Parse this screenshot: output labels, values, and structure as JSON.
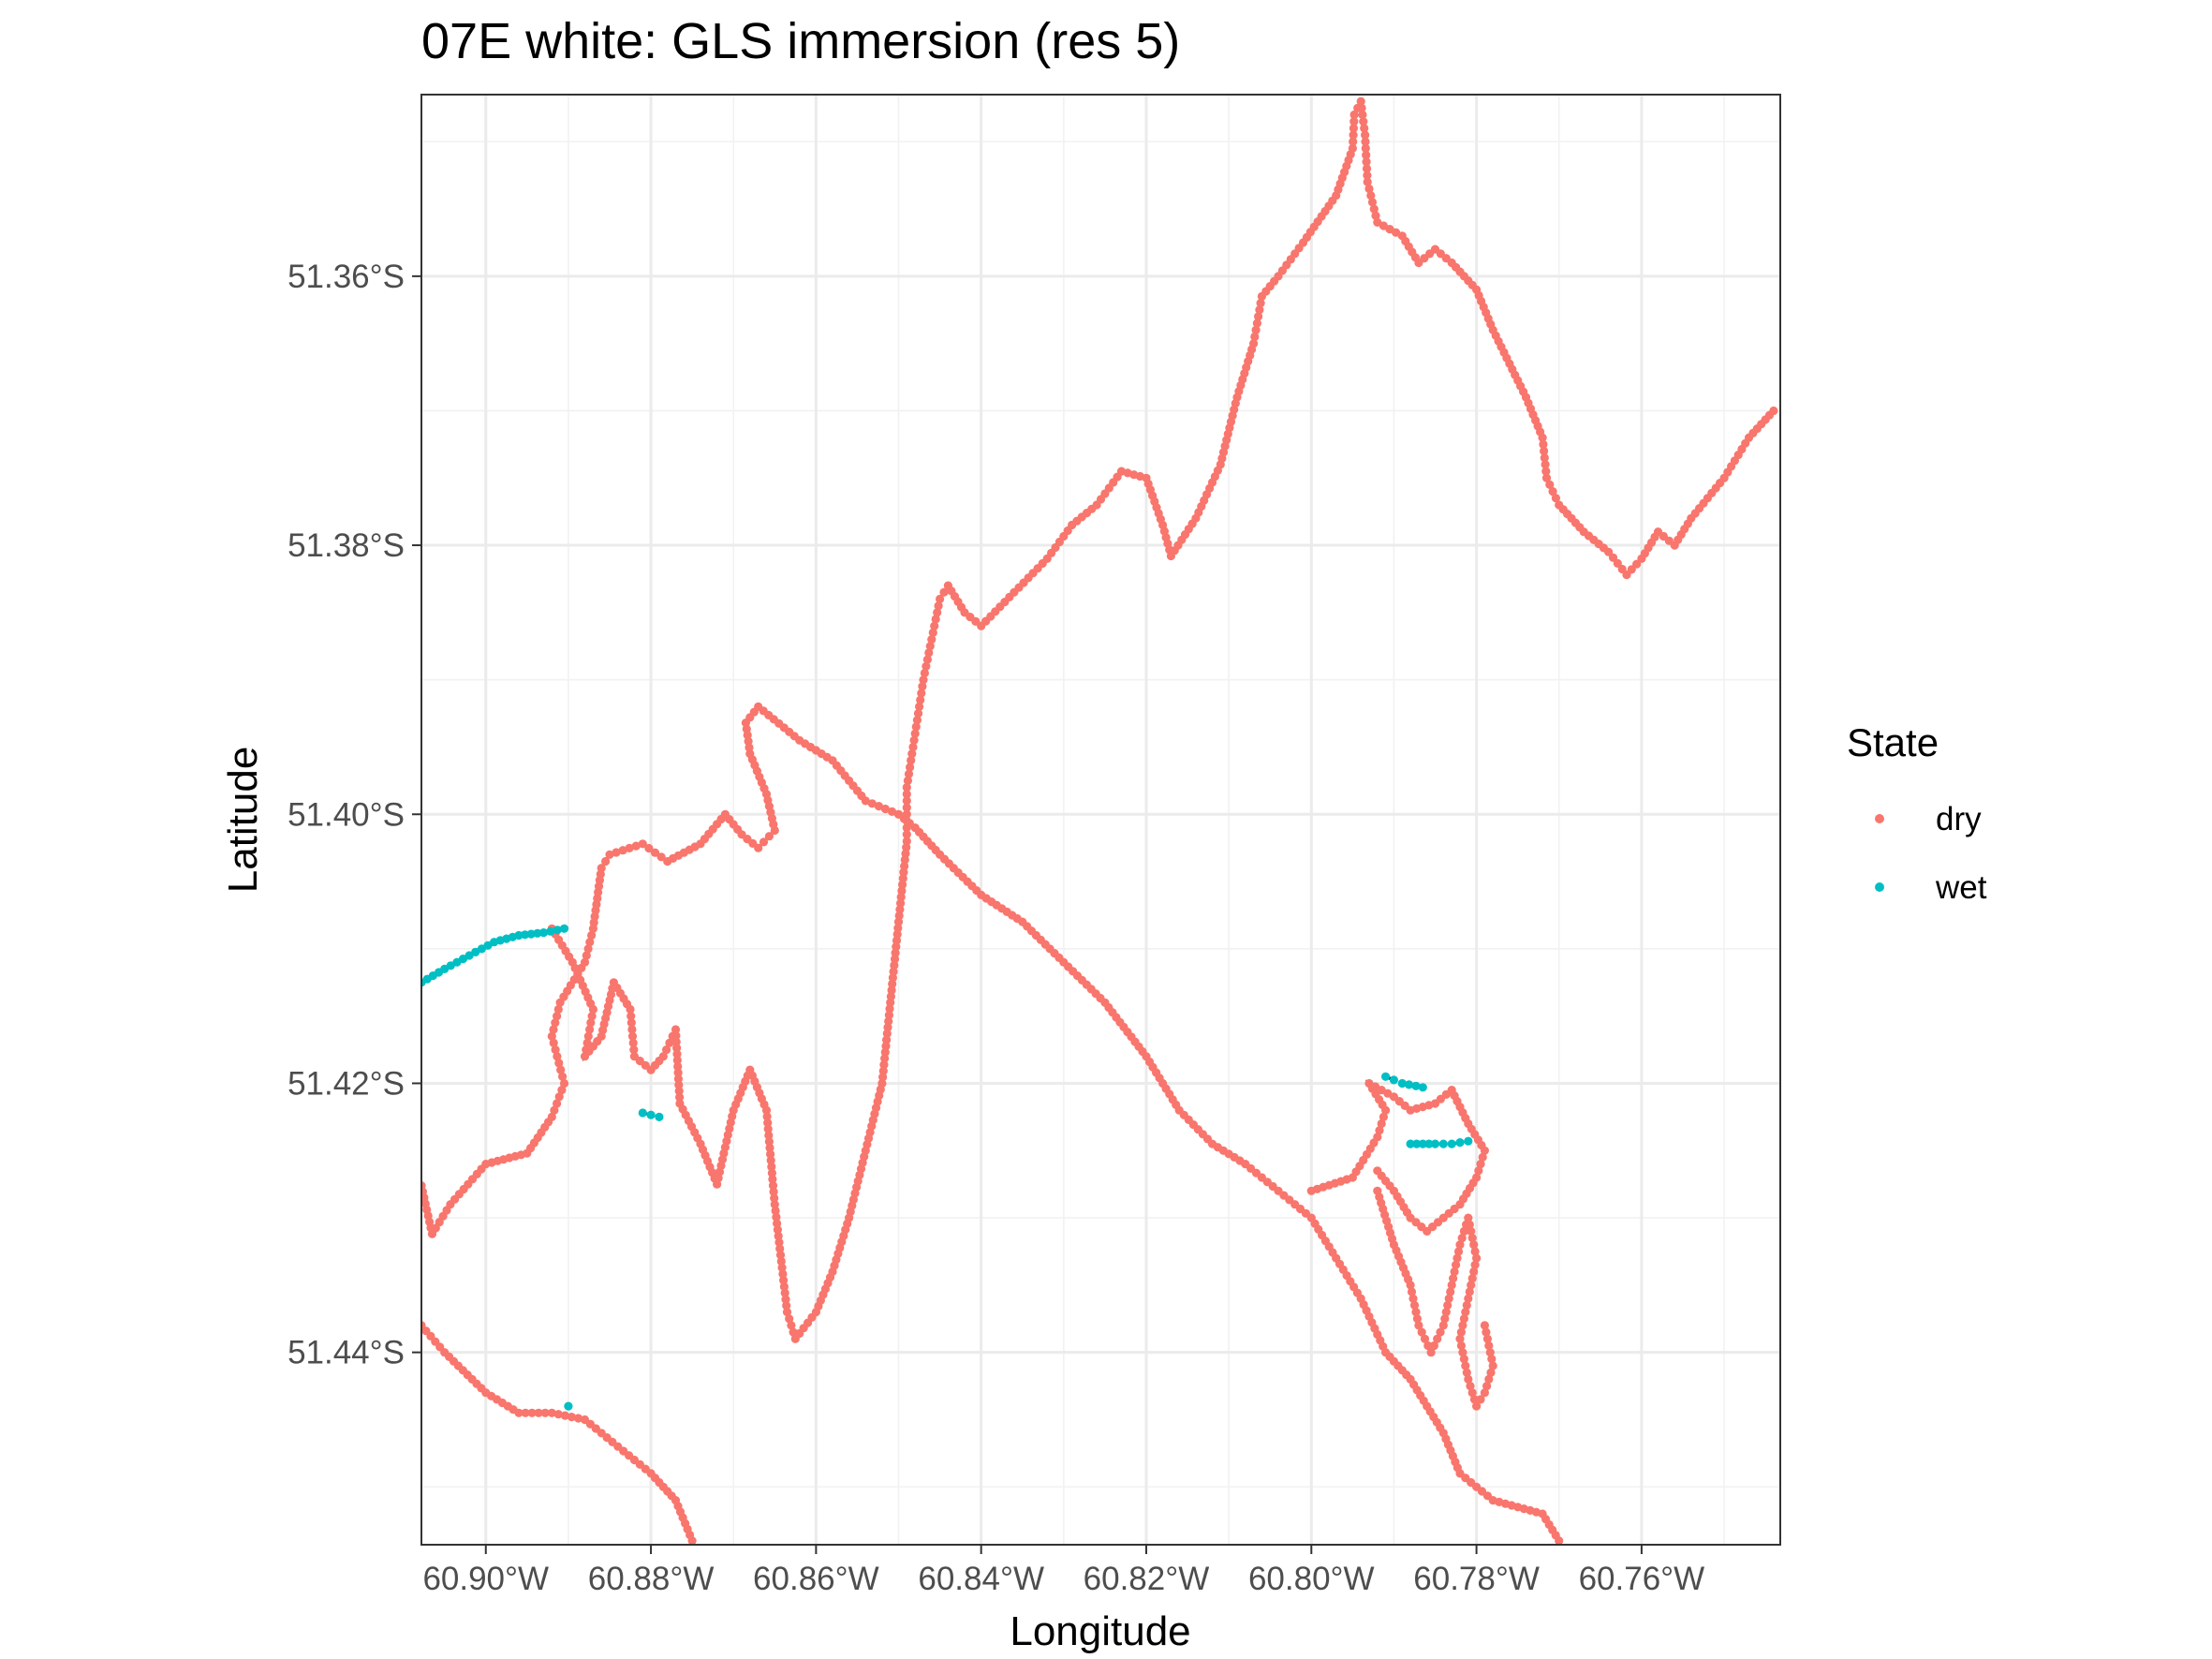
{
  "chart_data": {
    "type": "scatter",
    "title": "07E white: GLS immersion (res 5)",
    "xlabel": "Longitude",
    "ylabel": "Latitude",
    "xlim": [
      -60.9078,
      -60.7432
    ],
    "ylim": [
      -51.4543,
      -51.3465
    ],
    "x_ticks": [
      -60.9,
      -60.88,
      -60.86,
      -60.84,
      -60.82,
      -60.8,
      -60.78,
      -60.76
    ],
    "x_tick_labels": [
      "60.90°W",
      "60.88°W",
      "60.86°W",
      "60.84°W",
      "60.82°W",
      "60.80°W",
      "60.78°W",
      "60.76°W"
    ],
    "y_ticks": [
      -51.36,
      -51.38,
      -51.4,
      -51.42,
      -51.44
    ],
    "y_tick_labels": [
      "51.36°S",
      "51.38°S",
      "51.40°S",
      "51.42°S",
      "51.44°S"
    ],
    "grid": true,
    "legend": {
      "title": "State",
      "position": "right"
    },
    "connecting_line": {
      "color": "#000000",
      "style": "dashed"
    },
    "series": [
      {
        "name": "dry",
        "color": "#F8766D",
        "segments": [
          [
            [
              -60.9078,
              -51.4276
            ],
            [
              -60.9065,
              -51.4312
            ],
            [
              -60.9043,
              -51.429
            ],
            [
              -60.9,
              -51.426
            ],
            [
              -60.895,
              -51.4252
            ],
            [
              -60.892,
              -51.4225
            ],
            [
              -60.8905,
              -51.42
            ],
            [
              -60.892,
              -51.4165
            ],
            [
              -60.891,
              -51.414
            ],
            [
              -60.888,
              -51.411
            ],
            [
              -60.887,
              -51.4085
            ],
            [
              -60.886,
              -51.404
            ],
            [
              -60.885,
              -51.403
            ],
            [
              -60.881,
              -51.4022
            ],
            [
              -60.878,
              -51.4035
            ],
            [
              -60.874,
              -51.4022
            ],
            [
              -60.871,
              -51.4
            ],
            [
              -60.869,
              -51.4015
            ],
            [
              -60.867,
              -51.4025
            ],
            [
              -60.865,
              -51.4012
            ],
            [
              -60.866,
              -51.3985
            ],
            [
              -60.868,
              -51.3955
            ],
            [
              -60.8685,
              -51.3932
            ],
            [
              -60.867,
              -51.392
            ],
            [
              -60.862,
              -51.3945
            ],
            [
              -60.858,
              -51.396
            ],
            [
              -60.854,
              -51.399
            ],
            [
              -60.85,
              -51.4
            ]
          ],
          [
            [
              -60.892,
              -51.4085
            ],
            [
              -60.8895,
              -51.411
            ],
            [
              -60.887,
              -51.4145
            ],
            [
              -60.888,
              -51.418
            ],
            [
              -60.886,
              -51.4165
            ],
            [
              -60.8845,
              -51.4125
            ],
            [
              -60.8825,
              -51.4145
            ],
            [
              -60.882,
              -51.418
            ],
            [
              -60.88,
              -51.419
            ],
            [
              -60.8785,
              -51.418
            ],
            [
              -60.877,
              -51.416
            ],
            [
              -60.8765,
              -51.4215
            ],
            [
              -60.874,
              -51.4245
            ],
            [
              -60.872,
              -51.4275
            ],
            [
              -60.87,
              -51.422
            ],
            [
              -60.868,
              -51.419
            ],
            [
              -60.866,
              -51.422
            ],
            [
              -60.865,
              -51.429
            ],
            [
              -60.8635,
              -51.437
            ],
            [
              -60.8625,
              -51.439
            ],
            [
              -60.86,
              -51.437
            ],
            [
              -60.858,
              -51.434
            ],
            [
              -60.856,
              -51.43
            ],
            [
              -60.854,
              -51.425
            ],
            [
              -60.852,
              -51.42
            ],
            [
              -60.851,
              -51.414
            ],
            [
              -60.85,
              -51.408
            ],
            [
              -60.849,
              -51.402
            ],
            [
              -60.849,
              -51.398
            ],
            [
              -60.848,
              -51.394
            ],
            [
              -60.847,
              -51.39
            ],
            [
              -60.846,
              -51.387
            ],
            [
              -60.845,
              -51.384
            ],
            [
              -60.844,
              -51.383
            ],
            [
              -60.842,
              -51.385
            ],
            [
              -60.84,
              -51.386
            ],
            [
              -60.836,
              -51.3835
            ],
            [
              -60.832,
              -51.381
            ],
            [
              -60.829,
              -51.3785
            ],
            [
              -60.826,
              -51.377
            ],
            [
              -60.823,
              -51.3745
            ],
            [
              -60.82,
              -51.375
            ],
            [
              -60.818,
              -51.3785
            ],
            [
              -60.817,
              -51.3808
            ],
            [
              -60.814,
              -51.378
            ],
            [
              -60.811,
              -51.374
            ],
            [
              -60.809,
              -51.369
            ],
            [
              -60.807,
              -51.365
            ],
            [
              -60.806,
              -51.3615
            ],
            [
              -60.804,
              -51.36
            ],
            [
              -60.801,
              -51.3575
            ],
            [
              -60.797,
              -51.354
            ],
            [
              -60.795,
              -51.3505
            ],
            [
              -60.7948,
              -51.348
            ],
            [
              -60.794,
              -51.347
            ],
            [
              -60.7935,
              -51.3495
            ],
            [
              -60.7932,
              -51.353
            ],
            [
              -60.792,
              -51.356
            ],
            [
              -60.789,
              -51.357
            ],
            [
              -60.787,
              -51.359
            ],
            [
              -60.785,
              -51.358
            ],
            [
              -60.783,
              -51.359
            ],
            [
              -60.78,
              -51.361
            ],
            [
              -60.778,
              -51.364
            ],
            [
              -60.776,
              -51.3665
            ],
            [
              -60.774,
              -51.369
            ],
            [
              -60.772,
              -51.372
            ],
            [
              -60.7715,
              -51.375
            ],
            [
              -60.77,
              -51.377
            ],
            [
              -60.767,
              -51.379
            ],
            [
              -60.764,
              -51.3805
            ],
            [
              -60.7618,
              -51.3822
            ],
            [
              -60.76,
              -51.381
            ],
            [
              -60.758,
              -51.379
            ],
            [
              -60.756,
              -51.38
            ],
            [
              -60.754,
              -51.378
            ],
            [
              -60.75,
              -51.375
            ],
            [
              -60.747,
              -51.372
            ],
            [
              -60.744,
              -51.37
            ]
          ],
          [
            [
              -60.85,
              -51.4
            ],
            [
              -60.848,
              -51.401
            ],
            [
              -60.845,
              -51.403
            ],
            [
              -60.84,
              -51.406
            ],
            [
              -60.835,
              -51.408
            ],
            [
              -60.83,
              -51.411
            ],
            [
              -60.825,
              -51.414
            ],
            [
              -60.82,
              -51.418
            ],
            [
              -60.816,
              -51.422
            ],
            [
              -60.812,
              -51.4245
            ],
            [
              -60.808,
              -51.426
            ],
            [
              -60.804,
              -51.428
            ],
            [
              -60.8,
              -51.43
            ],
            [
              -60.797,
              -51.433
            ],
            [
              -60.794,
              -51.436
            ],
            [
              -60.791,
              -51.44
            ],
            [
              -60.788,
              -51.442
            ],
            [
              -60.786,
              -51.444
            ],
            [
              -60.784,
              -51.446
            ],
            [
              -60.782,
              -51.449
            ],
            [
              -60.778,
              -51.451
            ],
            [
              -60.772,
              -51.452
            ],
            [
              -60.77,
              -51.454
            ]
          ],
          [
            [
              -60.8,
              -51.428
            ],
            [
              -60.795,
              -51.427
            ],
            [
              -60.792,
              -51.424
            ],
            [
              -60.791,
              -51.422
            ],
            [
              -60.793,
              -51.42
            ],
            [
              -60.79,
              -51.421
            ],
            [
              -60.788,
              -51.422
            ],
            [
              -60.785,
              -51.4215
            ],
            [
              -60.783,
              -51.4205
            ],
            [
              -60.781,
              -51.423
            ],
            [
              -60.779,
              -51.425
            ],
            [
              -60.78,
              -51.427
            ],
            [
              -60.782,
              -51.429
            ],
            [
              -60.784,
              -51.43
            ],
            [
              -60.786,
              -51.431
            ],
            [
              -60.788,
              -51.43
            ],
            [
              -60.79,
              -51.428
            ],
            [
              -60.792,
              -51.4265
            ]
          ],
          [
            [
              -60.792,
              -51.428
            ],
            [
              -60.79,
              -51.432
            ],
            [
              -60.788,
              -51.435
            ],
            [
              -60.787,
              -51.438
            ],
            [
              -60.7855,
              -51.44
            ],
            [
              -60.784,
              -51.438
            ],
            [
              -60.783,
              -51.435
            ],
            [
              -60.782,
              -51.432
            ],
            [
              -60.781,
              -51.43
            ],
            [
              -60.78,
              -51.433
            ],
            [
              -60.781,
              -51.436
            ],
            [
              -60.782,
              -51.439
            ],
            [
              -60.781,
              -51.442
            ],
            [
              -60.78,
              -51.444
            ],
            [
              -60.779,
              -51.443
            ],
            [
              -60.778,
              -51.441
            ],
            [
              -60.779,
              -51.438
            ]
          ],
          [
            [
              -60.9078,
              -51.438
            ],
            [
              -60.905,
              -51.44
            ],
            [
              -60.9,
              -51.443
            ],
            [
              -60.896,
              -51.4445
            ],
            [
              -60.892,
              -51.4445
            ],
            [
              -60.888,
              -51.445
            ],
            [
              -60.884,
              -51.447
            ],
            [
              -60.88,
              -51.449
            ],
            [
              -60.877,
              -51.451
            ],
            [
              -60.875,
              -51.454
            ]
          ]
        ]
      },
      {
        "name": "wet",
        "color": "#00BFC4",
        "segments": [
          [
            [
              -60.9078,
              -51.4125
            ],
            [
              -60.905,
              -51.4115
            ],
            [
              -60.902,
              -51.4105
            ],
            [
              -60.899,
              -51.4095
            ],
            [
              -60.896,
              -51.409
            ],
            [
              -60.893,
              -51.4088
            ],
            [
              -60.8905,
              -51.4085
            ]
          ],
          [
            [
              -60.881,
              -51.4222
            ],
            [
              -60.879,
              -51.4225
            ]
          ],
          [
            [
              -60.791,
              -51.4195
            ],
            [
              -60.789,
              -51.42
            ],
            [
              -60.7865,
              -51.4203
            ]
          ],
          [
            [
              -60.788,
              -51.4245
            ],
            [
              -60.785,
              -51.4245
            ],
            [
              -60.783,
              -51.4245
            ],
            [
              -60.781,
              -51.4243
            ]
          ],
          [
            [
              -60.89,
              -51.444
            ]
          ]
        ]
      }
    ]
  }
}
